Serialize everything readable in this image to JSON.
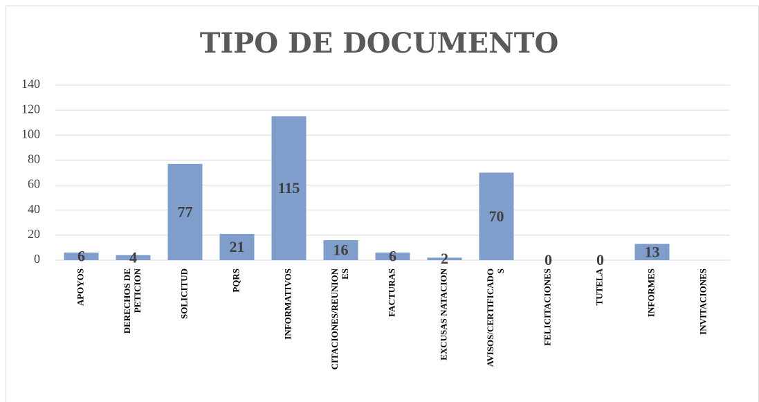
{
  "chart_data": {
    "type": "bar",
    "title": "TIPO DE DOCUMENTO",
    "categories": [
      "APOYOS",
      "DERECHOS DE PETICION",
      "SOLICITUD",
      "PQRS",
      "INFORMATIVOS",
      "CITACIONES/REUNIONES",
      "FACTURAS",
      "EXCUSAS NATACION",
      "AVISOS/CERTIFICADOS",
      "FELICITACIONES",
      "TUTELA",
      "INFORMES",
      "INVITACIONES"
    ],
    "values": [
      6,
      4,
      77,
      21,
      115,
      16,
      6,
      2,
      70,
      0,
      0,
      13,
      null
    ],
    "color": "#809ecb",
    "ylim": [
      0,
      140
    ],
    "yticks": [
      0,
      20,
      40,
      60,
      80,
      100,
      120,
      140
    ],
    "grid": true
  }
}
